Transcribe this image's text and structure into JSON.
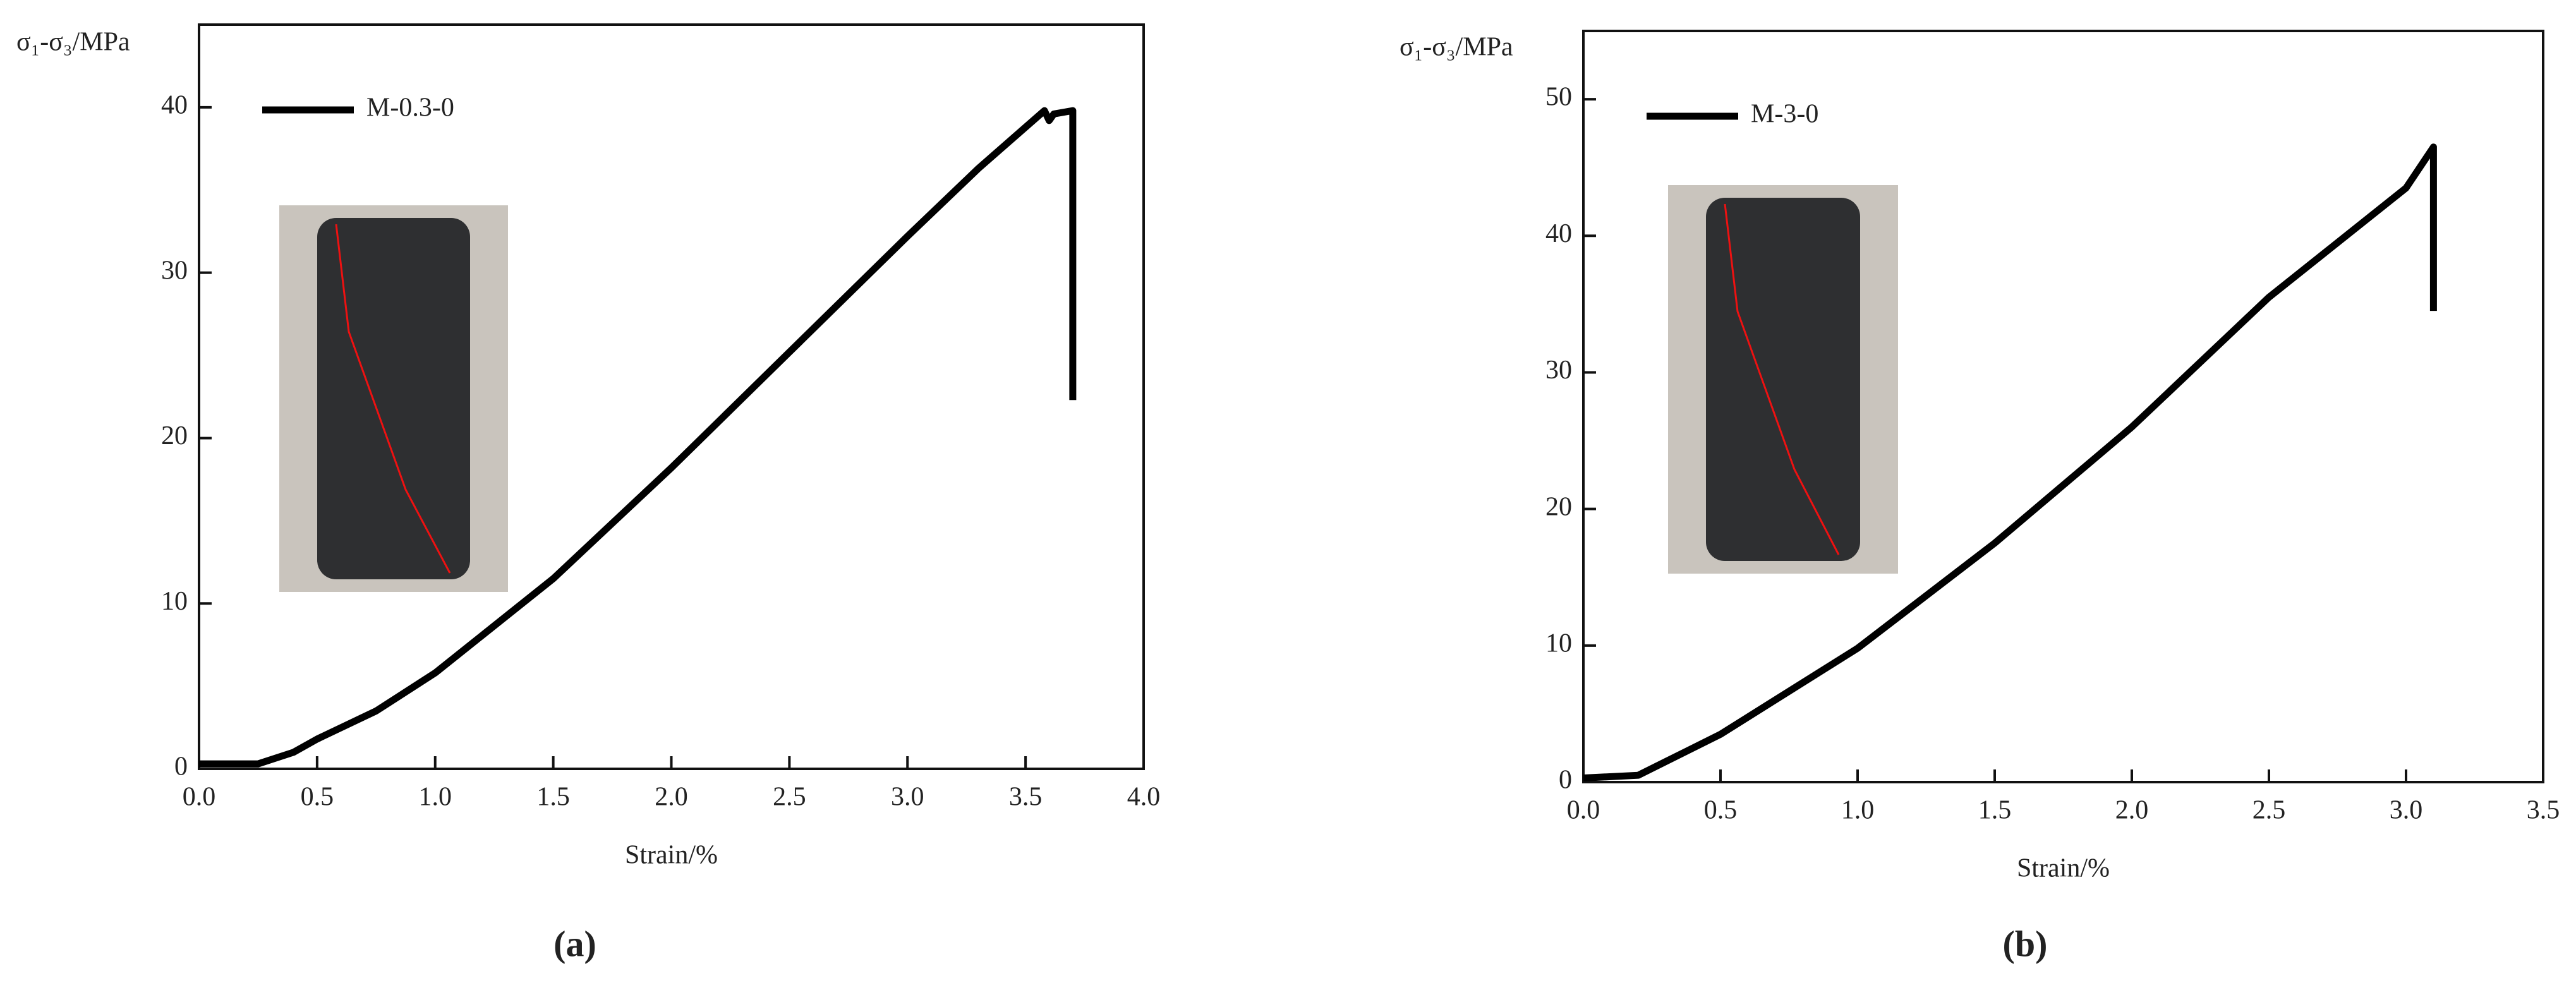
{
  "chart_data": [
    {
      "type": "line",
      "caption": "(a)",
      "y_label": "σ₁-σ₃/MPa",
      "x_label": "Strain/%",
      "legend": "upper left",
      "xlim": [
        0,
        4
      ],
      "ylim": [
        0,
        45
      ],
      "xticks": [
        {
          "value": 0,
          "label": "0.0"
        },
        0.5,
        {
          "value": 1,
          "label": "1.0"
        },
        1.5,
        {
          "value": 2,
          "label": "2.0"
        },
        2.5,
        {
          "value": 3,
          "label": "3.0"
        },
        3.5,
        {
          "value": 4,
          "label": "4.0"
        }
      ],
      "yticks": [
        0,
        10,
        20,
        30,
        40
      ],
      "x": [
        0,
        0.25,
        0.4,
        0.5,
        0.75,
        1,
        1.5,
        2,
        2.5,
        3,
        3.3,
        3.5,
        3.58,
        3.6,
        3.62,
        3.7,
        3.7
      ],
      "series": [
        {
          "name": "M-0.3-0",
          "color": "#000000",
          "values": [
            0.3,
            0.3,
            1,
            1.8,
            3.5,
            5.8,
            11.5,
            18.2,
            25.2,
            32.2,
            36.3,
            38.8,
            39.8,
            39.2,
            39.6,
            39.8,
            22.3
          ]
        }
      ]
    },
    {
      "type": "line",
      "caption": "(b)",
      "y_label": "σ₁-σ₃/MPa",
      "x_label": "Strain/%",
      "legend": "upper left",
      "xlim": [
        0,
        3.5
      ],
      "ylim": [
        0,
        55
      ],
      "xticks": [
        {
          "value": 0,
          "label": "0.0"
        },
        0.5,
        {
          "value": 1,
          "label": "1.0"
        },
        1.5,
        {
          "value": 2,
          "label": "2.0"
        },
        2.5,
        {
          "value": 3,
          "label": "3.0"
        },
        3.5
      ],
      "yticks": [
        0,
        10,
        20,
        30,
        40,
        50
      ],
      "x": [
        0,
        0.2,
        0.3,
        0.5,
        1,
        1.5,
        2,
        2.5,
        3,
        3.1,
        3.1
      ],
      "series": [
        {
          "name": "M-3-0",
          "color": "#000000",
          "values": [
            0.3,
            0.5,
            1.5,
            3.5,
            9.8,
            17.5,
            26,
            35.5,
            43.5,
            46.5,
            34.5
          ]
        }
      ]
    }
  ]
}
